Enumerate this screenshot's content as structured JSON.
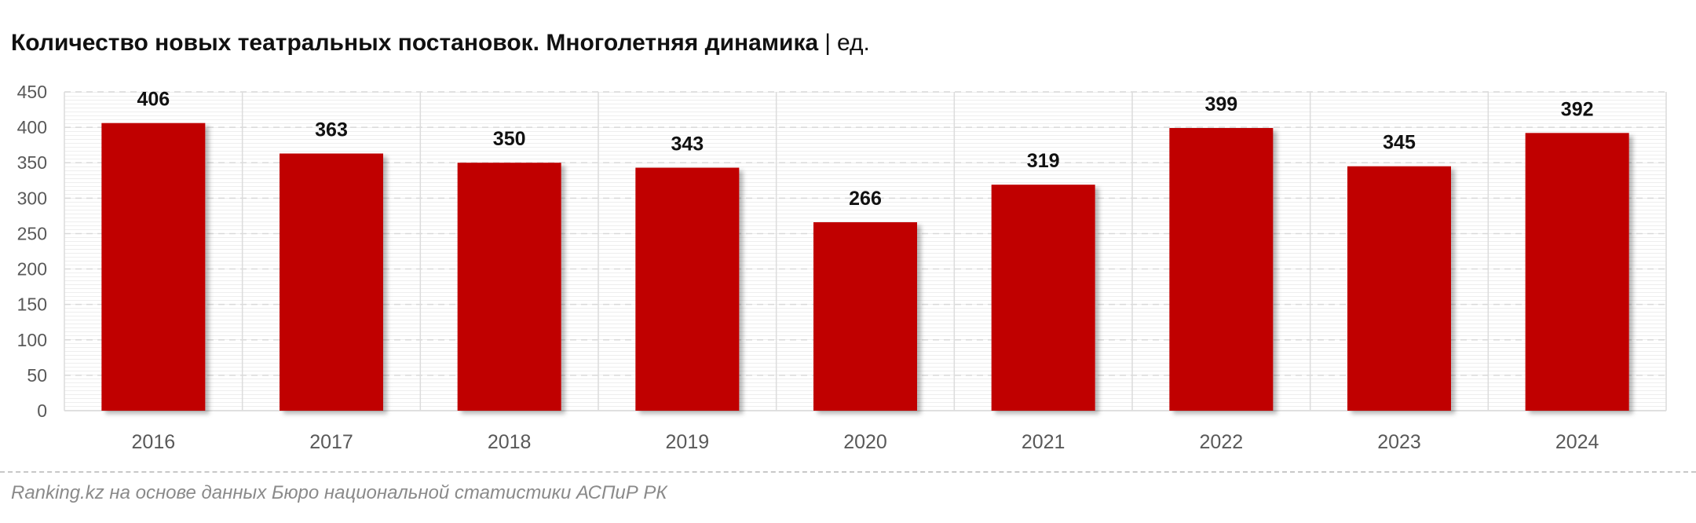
{
  "title": {
    "main": "Количество новых театральных постановок. Многолетняя динамика",
    "separator": "|",
    "unit": "ед."
  },
  "source": "Ranking.kz на основе данных Бюро национальной статистики АСПиР РК",
  "colors": {
    "bar": "#c00000",
    "grid": "#d9d9d9",
    "axis_text": "#595959",
    "label_text": "#111111"
  },
  "chart_data": {
    "type": "bar",
    "title": "Количество новых театральных постановок. Многолетняя динамика | ед.",
    "categories": [
      "2016",
      "2017",
      "2018",
      "2019",
      "2020",
      "2021",
      "2022",
      "2023",
      "2024"
    ],
    "values": [
      406,
      363,
      350,
      343,
      266,
      319,
      399,
      345,
      392
    ],
    "ylim": [
      0,
      450
    ],
    "yticks": [
      0,
      50,
      100,
      150,
      200,
      250,
      300,
      350,
      400,
      450
    ],
    "xlabel": "",
    "ylabel": "",
    "grid": true,
    "legend": "none",
    "data_labels": true
  }
}
